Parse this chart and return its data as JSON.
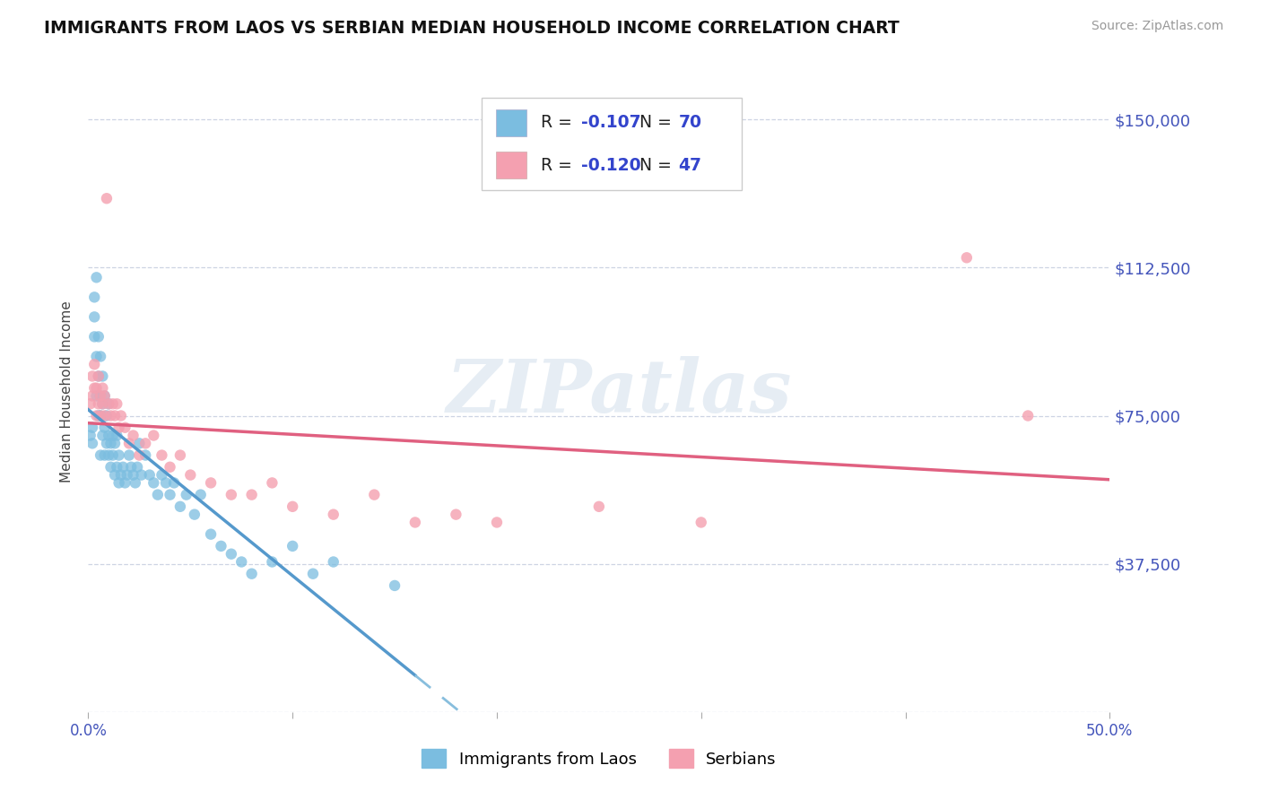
{
  "title": "IMMIGRANTS FROM LAOS VS SERBIAN MEDIAN HOUSEHOLD INCOME CORRELATION CHART",
  "source": "Source: ZipAtlas.com",
  "ylabel": "Median Household Income",
  "yticks": [
    0,
    37500,
    75000,
    112500,
    150000
  ],
  "ytick_labels": [
    "",
    "$37,500",
    "$75,000",
    "$112,500",
    "$150,000"
  ],
  "xmin": 0.0,
  "xmax": 0.5,
  "ymin": 0,
  "ymax": 162000,
  "legend_r1": "-0.107",
  "legend_n1": "70",
  "legend_r2": "-0.120",
  "legend_n2": "47",
  "series1_label": "Immigrants from Laos",
  "series2_label": "Serbians",
  "color1": "#7bbde0",
  "color2": "#f4a0b0",
  "trendline1_solid_color": "#5599cc",
  "trendline1_dash_color": "#88bedd",
  "trendline2_color": "#e06080",
  "background_color": "#ffffff",
  "laos_x": [
    0.001,
    0.002,
    0.002,
    0.003,
    0.003,
    0.003,
    0.004,
    0.004,
    0.004,
    0.005,
    0.005,
    0.005,
    0.006,
    0.006,
    0.006,
    0.006,
    0.007,
    0.007,
    0.007,
    0.008,
    0.008,
    0.008,
    0.009,
    0.009,
    0.01,
    0.01,
    0.01,
    0.011,
    0.011,
    0.012,
    0.012,
    0.013,
    0.013,
    0.014,
    0.014,
    0.015,
    0.015,
    0.016,
    0.017,
    0.018,
    0.019,
    0.02,
    0.021,
    0.022,
    0.023,
    0.024,
    0.025,
    0.026,
    0.028,
    0.03,
    0.032,
    0.034,
    0.036,
    0.038,
    0.04,
    0.042,
    0.045,
    0.048,
    0.052,
    0.055,
    0.06,
    0.065,
    0.07,
    0.075,
    0.08,
    0.09,
    0.1,
    0.11,
    0.12,
    0.15
  ],
  "laos_y": [
    70000,
    68000,
    72000,
    95000,
    100000,
    105000,
    80000,
    90000,
    110000,
    75000,
    85000,
    95000,
    65000,
    75000,
    80000,
    90000,
    70000,
    78000,
    85000,
    65000,
    72000,
    80000,
    68000,
    75000,
    65000,
    70000,
    78000,
    62000,
    68000,
    65000,
    70000,
    60000,
    68000,
    62000,
    70000,
    58000,
    65000,
    60000,
    62000,
    58000,
    60000,
    65000,
    62000,
    60000,
    58000,
    62000,
    68000,
    60000,
    65000,
    60000,
    58000,
    55000,
    60000,
    58000,
    55000,
    58000,
    52000,
    55000,
    50000,
    55000,
    45000,
    42000,
    40000,
    38000,
    35000,
    38000,
    42000,
    35000,
    38000,
    32000
  ],
  "serb_x": [
    0.001,
    0.002,
    0.002,
    0.003,
    0.003,
    0.004,
    0.004,
    0.005,
    0.005,
    0.006,
    0.006,
    0.007,
    0.007,
    0.008,
    0.008,
    0.009,
    0.01,
    0.011,
    0.012,
    0.013,
    0.014,
    0.015,
    0.016,
    0.018,
    0.02,
    0.022,
    0.025,
    0.028,
    0.032,
    0.036,
    0.04,
    0.045,
    0.05,
    0.06,
    0.07,
    0.08,
    0.09,
    0.1,
    0.12,
    0.14,
    0.16,
    0.18,
    0.2,
    0.25,
    0.3,
    0.43,
    0.46
  ],
  "serb_y": [
    78000,
    80000,
    85000,
    82000,
    88000,
    75000,
    82000,
    78000,
    85000,
    75000,
    80000,
    78000,
    82000,
    75000,
    80000,
    130000,
    78000,
    75000,
    78000,
    75000,
    78000,
    72000,
    75000,
    72000,
    68000,
    70000,
    65000,
    68000,
    70000,
    65000,
    62000,
    65000,
    60000,
    58000,
    55000,
    55000,
    58000,
    52000,
    50000,
    55000,
    48000,
    50000,
    48000,
    52000,
    48000,
    115000,
    75000
  ]
}
